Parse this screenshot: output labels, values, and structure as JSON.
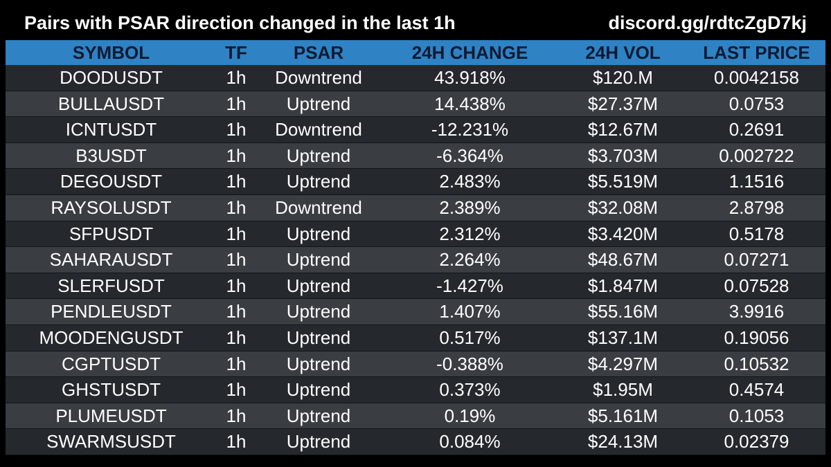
{
  "header": {
    "title": "Pairs with PSAR direction changed in the last 1h",
    "link": "discord.gg/rdtcZgD7kj"
  },
  "colors": {
    "background": "#000000",
    "header_row": "#2f82c3",
    "row_odd": "#25292d",
    "row_even": "#3a3e43",
    "header_text": "#0d1a33",
    "cell_text": "#ffffff"
  },
  "table": {
    "columns": [
      "SYMBOL",
      "TF",
      "PSAR",
      "24H CHANGE",
      "24H VOL",
      "LAST PRICE"
    ],
    "rows": [
      {
        "symbol": "DOODUSDT",
        "tf": "1h",
        "psar": "Downtrend",
        "change": "43.918%",
        "vol": "$120.M",
        "price": "0.0042158"
      },
      {
        "symbol": "BULLAUSDT",
        "tf": "1h",
        "psar": "Uptrend",
        "change": "14.438%",
        "vol": "$27.37M",
        "price": "0.0753"
      },
      {
        "symbol": "ICNTUSDT",
        "tf": "1h",
        "psar": "Downtrend",
        "change": "-12.231%",
        "vol": "$12.67M",
        "price": "0.2691"
      },
      {
        "symbol": "B3USDT",
        "tf": "1h",
        "psar": "Uptrend",
        "change": "-6.364%",
        "vol": "$3.703M",
        "price": "0.002722"
      },
      {
        "symbol": "DEGOUSDT",
        "tf": "1h",
        "psar": "Uptrend",
        "change": "2.483%",
        "vol": "$5.519M",
        "price": "1.1516"
      },
      {
        "symbol": "RAYSOLUSDT",
        "tf": "1h",
        "psar": "Downtrend",
        "change": "2.389%",
        "vol": "$32.08M",
        "price": "2.8798"
      },
      {
        "symbol": "SFPUSDT",
        "tf": "1h",
        "psar": "Uptrend",
        "change": "2.312%",
        "vol": "$3.420M",
        "price": "0.5178"
      },
      {
        "symbol": "SAHARAUSDT",
        "tf": "1h",
        "psar": "Uptrend",
        "change": "2.264%",
        "vol": "$48.67M",
        "price": "0.07271"
      },
      {
        "symbol": "SLERFUSDT",
        "tf": "1h",
        "psar": "Uptrend",
        "change": "-1.427%",
        "vol": "$1.847M",
        "price": "0.07528"
      },
      {
        "symbol": "PENDLEUSDT",
        "tf": "1h",
        "psar": "Uptrend",
        "change": "1.407%",
        "vol": "$55.16M",
        "price": "3.9916"
      },
      {
        "symbol": "MOODENGUSDT",
        "tf": "1h",
        "psar": "Uptrend",
        "change": "0.517%",
        "vol": "$137.1M",
        "price": "0.19056"
      },
      {
        "symbol": "CGPTUSDT",
        "tf": "1h",
        "psar": "Uptrend",
        "change": "-0.388%",
        "vol": "$4.297M",
        "price": "0.10532"
      },
      {
        "symbol": "GHSTUSDT",
        "tf": "1h",
        "psar": "Uptrend",
        "change": "0.373%",
        "vol": "$1.95M",
        "price": "0.4574"
      },
      {
        "symbol": "PLUMEUSDT",
        "tf": "1h",
        "psar": "Uptrend",
        "change": "0.19%",
        "vol": "$5.161M",
        "price": "0.1053"
      },
      {
        "symbol": "SWARMSUSDT",
        "tf": "1h",
        "psar": "Uptrend",
        "change": "0.084%",
        "vol": "$24.13M",
        "price": "0.02379"
      }
    ]
  }
}
